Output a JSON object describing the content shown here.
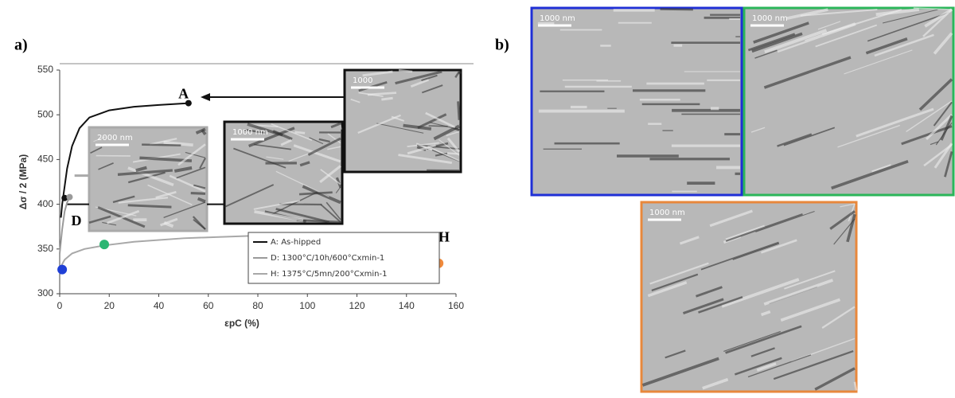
{
  "panel_a_label": "a)",
  "panel_b_label": "b)",
  "chart_data": {
    "type": "line",
    "xlabel": "εpC (%)",
    "ylabel": "Δσ / 2 (MPa)",
    "xlim": [
      0,
      160
    ],
    "ylim": [
      300,
      550
    ],
    "xticks": [
      0,
      20,
      40,
      60,
      80,
      100,
      120,
      140,
      160
    ],
    "yticks": [
      300,
      350,
      400,
      450,
      500,
      550
    ],
    "series": [
      {
        "name": "A: As-hipped",
        "color": "#111111",
        "x": [
          0.5,
          1,
          2,
          3,
          5,
          8,
          12,
          20,
          30,
          40,
          52
        ],
        "values": [
          385,
          400,
          420,
          440,
          465,
          485,
          497,
          505,
          509,
          511,
          513
        ]
      },
      {
        "name": "D: 1300°C/10h/600°Cxmin-1",
        "color": "#9a9a9a",
        "x": [
          0,
          1,
          2,
          3,
          4
        ],
        "values": [
          345,
          372,
          392,
          402,
          408
        ]
      },
      {
        "name": "H: 1375°C/5mn/200°Cxmin-1",
        "color": "#a8a8a8",
        "x": [
          0,
          2,
          5,
          10,
          18,
          30,
          50,
          80,
          100,
          120,
          140,
          148,
          152,
          153
        ],
        "values": [
          328,
          338,
          345,
          350,
          354,
          358,
          362,
          365,
          366,
          367,
          366,
          360,
          345,
          335
        ]
      }
    ],
    "points": [
      {
        "x": 52,
        "y": 513,
        "color": "#111111"
      },
      {
        "x": 2,
        "y": 407,
        "color": "#111111"
      },
      {
        "x": 4,
        "y": 408,
        "color": "#9a9a9a"
      },
      {
        "x": 1,
        "y": 327,
        "color": "#1f3fd6"
      },
      {
        "x": 18,
        "y": 355,
        "color": "#2bb673"
      },
      {
        "x": 153,
        "y": 334,
        "color": "#f08a3c"
      }
    ],
    "annotations": [
      "A",
      "D",
      "H"
    ]
  },
  "micrographs": [
    {
      "scale_label": "2000 nm",
      "border_color": "#aaaaaa"
    },
    {
      "scale_label": "1000 nm",
      "border_color": "#111111"
    },
    {
      "scale_label": "1000",
      "border_color": "#111111"
    },
    {
      "scale_label": "1000 nm",
      "border_color": "#1f2fd6"
    },
    {
      "scale_label": "1000 nm",
      "border_color": "#2bb65a"
    },
    {
      "scale_label": "1000 nm",
      "border_color": "#e8883c"
    }
  ]
}
